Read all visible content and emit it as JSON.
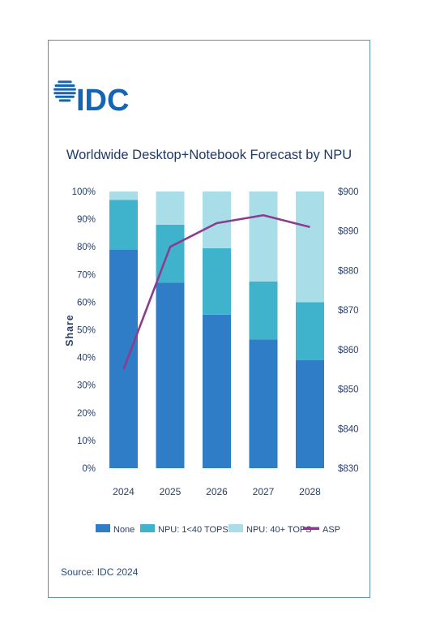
{
  "logo": {
    "text": "IDC"
  },
  "source": "Source: IDC 2024",
  "colors": {
    "none": "#2f7dc7",
    "npu_low": "#3fb3cc",
    "npu_high": "#a9dde8",
    "asp": "#8a3d8f",
    "title": "#1f3a68",
    "axis_text": "#2a3f66",
    "logo": "#1565b5"
  },
  "chart_data": {
    "type": "bar",
    "stacked": true,
    "title": "Worldwide Desktop+Notebook Forecast by NPU",
    "ylabel": "Share",
    "ylim": [
      0,
      100
    ],
    "y_ticks": [
      "0%",
      "10%",
      "20%",
      "30%",
      "40%",
      "50%",
      "60%",
      "70%",
      "80%",
      "90%",
      "100%"
    ],
    "y2lim": [
      830,
      900
    ],
    "y2_ticks": [
      "$830",
      "$840",
      "$850",
      "$860",
      "$870",
      "$880",
      "$890",
      "$900"
    ],
    "categories": [
      "2024",
      "2025",
      "2026",
      "2027",
      "2028"
    ],
    "series": [
      {
        "name": "None",
        "values": [
          79,
          67,
          55.5,
          46.5,
          39
        ]
      },
      {
        "name": "NPU: 1<40 TOPS",
        "values": [
          18,
          21,
          24,
          21,
          21
        ]
      },
      {
        "name": "NPU: 40+ TOPS",
        "values": [
          3,
          12,
          20.5,
          32.5,
          40
        ]
      }
    ],
    "line_series": {
      "name": "ASP",
      "axis": "right",
      "values": [
        855,
        886,
        892,
        894,
        891
      ]
    },
    "legend": [
      "None",
      "NPU: 1<40 TOPS",
      "NPU: 40+ TOPS",
      "ASP"
    ],
    "legend_position": "bottom",
    "grid": false
  }
}
